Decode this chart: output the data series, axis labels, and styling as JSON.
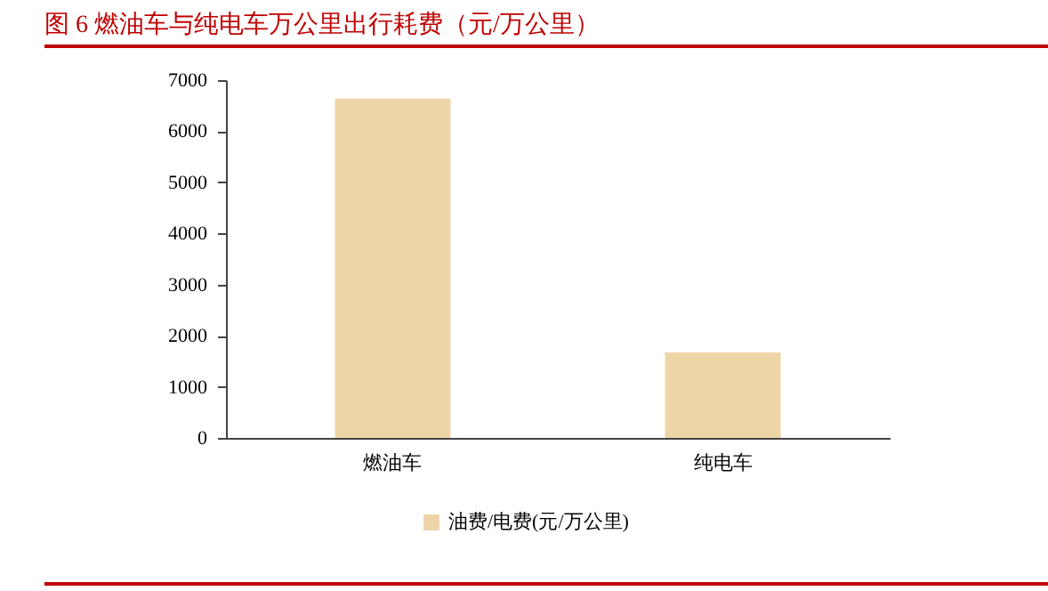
{
  "chart_data": {
    "type": "bar",
    "title": "图 6 燃油车与纯电车万公里出行耗费（元/万公里）",
    "categories": [
      "燃油车",
      "纯电车"
    ],
    "series": [
      {
        "name": "油费/电费(元/万公里)",
        "color": "#edd5a8",
        "values": [
          6640,
          1670
        ]
      }
    ],
    "ylim": [
      0,
      7000
    ],
    "yticks": [
      0,
      1000,
      2000,
      3000,
      4000,
      5000,
      6000,
      7000
    ],
    "grid": false,
    "legend": "bottom"
  }
}
